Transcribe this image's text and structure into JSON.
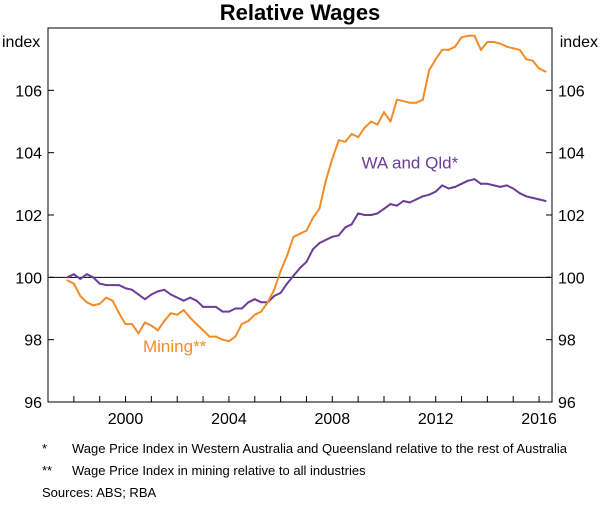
{
  "chart_data": {
    "type": "line",
    "title": "Relative Wages",
    "ylabel_left": "index",
    "ylabel_right": "index",
    "xlim": [
      1997.0,
      2016.5
    ],
    "ylim": [
      96,
      108
    ],
    "x_ticks": [
      2000,
      2004,
      2008,
      2012,
      2016
    ],
    "x_tick_labels": [
      "2000",
      "2004",
      "2008",
      "2012",
      "2016"
    ],
    "y_ticks": [
      96,
      98,
      100,
      102,
      104,
      106
    ],
    "y_tick_labels": [
      "96",
      "98",
      "100",
      "102",
      "104",
      "106"
    ],
    "reference_line": 100,
    "grid": false,
    "series": [
      {
        "name": "WA and Qld*",
        "color": "#6a3d9a",
        "x": [
          1997.75,
          1998.0,
          1998.25,
          1998.5,
          1998.75,
          1999.0,
          1999.25,
          1999.5,
          1999.75,
          2000.0,
          2000.25,
          2000.5,
          2000.75,
          2001.0,
          2001.25,
          2001.5,
          2001.75,
          2002.0,
          2002.25,
          2002.5,
          2002.75,
          2003.0,
          2003.25,
          2003.5,
          2003.75,
          2004.0,
          2004.25,
          2004.5,
          2004.75,
          2005.0,
          2005.25,
          2005.5,
          2005.75,
          2006.0,
          2006.25,
          2006.5,
          2006.75,
          2007.0,
          2007.25,
          2007.5,
          2007.75,
          2008.0,
          2008.25,
          2008.5,
          2008.75,
          2009.0,
          2009.25,
          2009.5,
          2009.75,
          2010.0,
          2010.25,
          2010.5,
          2010.75,
          2011.0,
          2011.25,
          2011.5,
          2011.75,
          2012.0,
          2012.25,
          2012.5,
          2012.75,
          2013.0,
          2013.25,
          2013.5,
          2013.75,
          2014.0,
          2014.25,
          2014.5,
          2014.75,
          2015.0,
          2015.25,
          2015.5,
          2015.75,
          2016.0,
          2016.25
        ],
        "values": [
          100.0,
          100.1,
          99.95,
          100.1,
          100.0,
          99.8,
          99.75,
          99.75,
          99.75,
          99.65,
          99.6,
          99.45,
          99.3,
          99.45,
          99.55,
          99.6,
          99.45,
          99.35,
          99.25,
          99.35,
          99.25,
          99.05,
          99.05,
          99.05,
          98.9,
          98.9,
          99.0,
          99.0,
          99.2,
          99.3,
          99.2,
          99.2,
          99.4,
          99.5,
          99.8,
          100.05,
          100.3,
          100.5,
          100.9,
          101.1,
          101.2,
          101.3,
          101.35,
          101.6,
          101.7,
          102.05,
          102.0,
          102.0,
          102.05,
          102.2,
          102.35,
          102.3,
          102.45,
          102.4,
          102.5,
          102.6,
          102.65,
          102.75,
          102.95,
          102.85,
          102.9,
          103.0,
          103.1,
          103.15,
          103.0,
          103.0,
          102.95,
          102.9,
          102.95,
          102.85,
          102.7,
          102.6,
          102.55,
          102.5,
          102.45
        ]
      },
      {
        "name": "Mining**",
        "color": "#f28c28",
        "x": [
          1997.75,
          1998.0,
          1998.25,
          1998.5,
          1998.75,
          1999.0,
          1999.25,
          1999.5,
          1999.75,
          2000.0,
          2000.25,
          2000.5,
          2000.75,
          2001.0,
          2001.25,
          2001.5,
          2001.75,
          2002.0,
          2002.25,
          2002.5,
          2002.75,
          2003.0,
          2003.25,
          2003.5,
          2003.75,
          2004.0,
          2004.25,
          2004.5,
          2004.75,
          2005.0,
          2005.25,
          2005.5,
          2005.75,
          2006.0,
          2006.25,
          2006.5,
          2006.75,
          2007.0,
          2007.25,
          2007.5,
          2007.75,
          2008.0,
          2008.25,
          2008.5,
          2008.75,
          2009.0,
          2009.25,
          2009.5,
          2009.75,
          2010.0,
          2010.25,
          2010.5,
          2010.75,
          2011.0,
          2011.25,
          2011.5,
          2011.75,
          2012.0,
          2012.25,
          2012.5,
          2012.75,
          2013.0,
          2013.25,
          2013.5,
          2013.75,
          2014.0,
          2014.25,
          2014.5,
          2014.75,
          2015.0,
          2015.25,
          2015.5,
          2015.75,
          2016.0,
          2016.25
        ],
        "values": [
          99.9,
          99.8,
          99.4,
          99.2,
          99.1,
          99.15,
          99.35,
          99.25,
          98.85,
          98.5,
          98.5,
          98.2,
          98.55,
          98.45,
          98.3,
          98.6,
          98.85,
          98.8,
          98.95,
          98.7,
          98.5,
          98.3,
          98.1,
          98.1,
          98.0,
          97.95,
          98.1,
          98.5,
          98.6,
          98.8,
          98.9,
          99.2,
          99.6,
          100.2,
          100.7,
          101.3,
          101.4,
          101.5,
          101.9,
          102.2,
          103.1,
          103.8,
          104.4,
          104.35,
          104.6,
          104.5,
          104.8,
          105.0,
          104.9,
          105.3,
          105.0,
          105.7,
          105.65,
          105.6,
          105.6,
          105.7,
          106.65,
          107.0,
          107.3,
          107.3,
          107.4,
          107.7,
          107.75,
          107.75,
          107.3,
          107.55,
          107.55,
          107.5,
          107.4,
          107.35,
          107.3,
          107.0,
          106.95,
          106.7,
          106.6
        ]
      }
    ],
    "annotations": [
      {
        "text": "WA and Qld*",
        "x": 2011.0,
        "y": 103.5,
        "color": "#6a3d9a"
      },
      {
        "text": "Mining**",
        "x": 2001.9,
        "y": 97.6,
        "color": "#f28c28"
      }
    ]
  },
  "notes": [
    {
      "mark": "*",
      "text": "Wage Price Index in Western Australia and Queensland relative to the rest of Australia"
    },
    {
      "mark": "**",
      "text": "Wage Price Index in mining relative to all industries"
    }
  ],
  "sources": "Sources:  ABS; RBA"
}
